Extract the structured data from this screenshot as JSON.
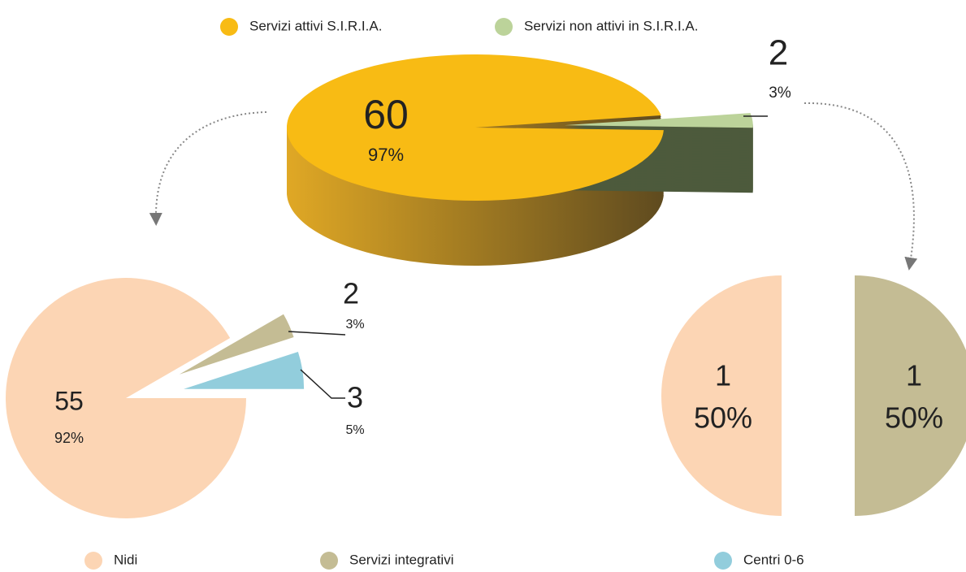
{
  "chart_data": [
    {
      "type": "pie3d",
      "categories": [
        "Servizi attivi S.I.R.I.A.",
        "Servizi non attivi in S.I.R.I.A."
      ],
      "values": [
        60,
        2
      ],
      "percentages": [
        97,
        3
      ],
      "percentage_labels": [
        "97%",
        "3%"
      ],
      "colors": [
        "#f8bb14",
        "#bcd39a"
      ],
      "side_colors": [
        "#a9801e",
        "#4d5a3c"
      ]
    },
    {
      "type": "pie",
      "categories": [
        "Nidi",
        "Servizi integrativi",
        "Centri 0-6"
      ],
      "values": [
        55,
        2,
        3
      ],
      "percentages": [
        92,
        3,
        5
      ],
      "percentage_labels": [
        "92%",
        "3%",
        "5%"
      ],
      "colors": [
        "#fcd5b4",
        "#c4bc94",
        "#92cddc"
      ]
    },
    {
      "type": "pie",
      "values": [
        1,
        1
      ],
      "percentages": [
        50,
        50
      ],
      "percentage_labels": [
        "50%",
        "50%"
      ],
      "colors": [
        "#fcd5b4",
        "#c4bc94"
      ]
    }
  ]
}
